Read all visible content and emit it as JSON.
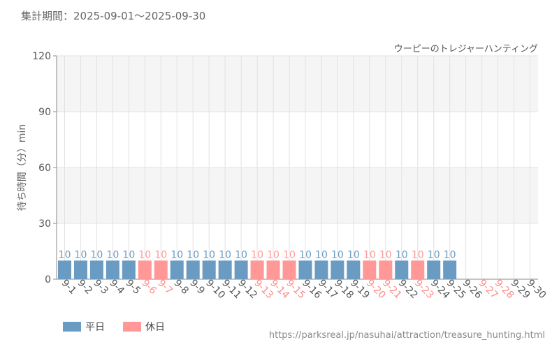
{
  "header": {
    "period": "集計期間：2025-09-01～2025-09-30"
  },
  "chart_data": {
    "type": "bar",
    "title": "ウーピーのトレジャーハンティング",
    "ylabel": "待ち時間（分）min",
    "ylim": [
      0,
      120
    ],
    "yticks": [
      0,
      30,
      60,
      90,
      120
    ],
    "grid": true,
    "legend_position": "bottom-left",
    "colors": {
      "weekday": "#6a9bc3",
      "holiday": "#ff9896"
    },
    "categories": [
      "9-1",
      "9-2",
      "9-3",
      "9-4",
      "9-5",
      "9-6",
      "9-7",
      "9-8",
      "9-9",
      "9-10",
      "9-11",
      "9-12",
      "9-13",
      "9-14",
      "9-15",
      "9-16",
      "9-17",
      "9-18",
      "9-19",
      "9-20",
      "9-21",
      "9-22",
      "9-23",
      "9-24",
      "9-25",
      "9-26",
      "9-27",
      "9-28",
      "9-29",
      "9-30"
    ],
    "day_types": [
      "weekday",
      "weekday",
      "weekday",
      "weekday",
      "weekday",
      "holiday",
      "holiday",
      "weekday",
      "weekday",
      "weekday",
      "weekday",
      "weekday",
      "holiday",
      "holiday",
      "holiday",
      "weekday",
      "weekday",
      "weekday",
      "weekday",
      "holiday",
      "holiday",
      "weekday",
      "holiday",
      "weekday",
      "weekday",
      "weekday",
      "holiday",
      "holiday",
      "weekday",
      "weekday"
    ],
    "values": [
      10,
      10,
      10,
      10,
      10,
      10,
      10,
      10,
      10,
      10,
      10,
      10,
      10,
      10,
      10,
      10,
      10,
      10,
      10,
      10,
      10,
      10,
      10,
      10,
      10,
      null,
      null,
      null,
      null,
      null
    ],
    "data_labels": [
      "10",
      "10",
      "10",
      "10",
      "10",
      "10",
      "10",
      "10",
      "10",
      "10",
      "10",
      "10",
      "10",
      "10",
      "10",
      "10",
      "10",
      "10",
      "10",
      "10",
      "10",
      "10",
      "10",
      "10",
      "10",
      "",
      "",
      "",
      "",
      ""
    ]
  },
  "legend": {
    "weekday_label": "平日",
    "holiday_label": "休日"
  },
  "footer": {
    "source_url": "https://parksreal.jp/nasuhai/attraction/treasure_hunting.html"
  }
}
